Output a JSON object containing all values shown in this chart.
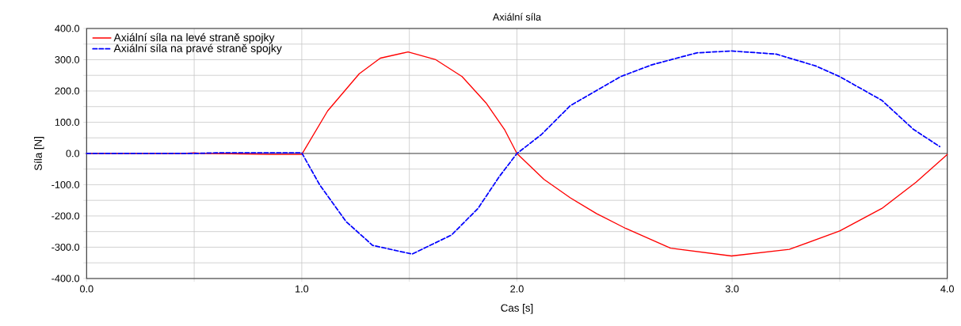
{
  "chart_data": {
    "type": "line",
    "title": "Axiální síla",
    "xlabel": "Cas [s]",
    "ylabel": "Síla [N]",
    "xlim": [
      0,
      4
    ],
    "ylim": [
      -400,
      400
    ],
    "xticks": [
      {
        "value": 0,
        "label": "0.0"
      },
      {
        "value": 0.5,
        "label": null
      },
      {
        "value": 1,
        "label": "1.0"
      },
      {
        "value": 1.5,
        "label": null
      },
      {
        "value": 2,
        "label": "2.0"
      },
      {
        "value": 2.5,
        "label": null
      },
      {
        "value": 3,
        "label": "3.0"
      },
      {
        "value": 3.5,
        "label": null
      },
      {
        "value": 4,
        "label": "4.0"
      }
    ],
    "yticks": [
      {
        "value": -400,
        "label": "-400.0"
      },
      {
        "value": -350,
        "label": null
      },
      {
        "value": -300,
        "label": "-300.0"
      },
      {
        "value": -250,
        "label": null
      },
      {
        "value": -200,
        "label": "-200.0"
      },
      {
        "value": -150,
        "label": null
      },
      {
        "value": -100,
        "label": "-100.0"
      },
      {
        "value": -50,
        "label": null
      },
      {
        "value": 0,
        "label": "0.0"
      },
      {
        "value": 50,
        "label": null
      },
      {
        "value": 100,
        "label": "100.0"
      },
      {
        "value": 150,
        "label": null
      },
      {
        "value": 200,
        "label": "200.0"
      },
      {
        "value": 250,
        "label": null
      },
      {
        "value": 300,
        "label": "300.0"
      },
      {
        "value": 350,
        "label": null
      },
      {
        "value": 400,
        "label": "400.0"
      }
    ],
    "grid": true,
    "legend": "top left",
    "marker": "none",
    "ref_lines": [
      {
        "axis": "y",
        "value": 0,
        "color": "#000000"
      }
    ],
    "series": [
      {
        "name": "Axiální síla na levé straně spojky",
        "color": "#ff0000",
        "line_style": "solid",
        "x": [
          0,
          0.45,
          0.5,
          0.55,
          0.85,
          1.0,
          1.12,
          1.267,
          1.365,
          1.494,
          1.623,
          1.745,
          1.856,
          1.942,
          2.0,
          2.126,
          2.248,
          2.371,
          2.506,
          2.714,
          2.997,
          3.266,
          3.5,
          3.696,
          3.855,
          4.0
        ],
        "values": [
          0,
          0,
          2,
          0,
          -3,
          -3,
          136,
          255,
          305,
          325,
          300,
          246,
          162,
          77,
          0,
          -83,
          -142,
          -193,
          -240,
          -303,
          -328,
          -307,
          -248,
          -176,
          -92,
          -3
        ]
      },
      {
        "name": "Axiální síla na pravé straně spojky",
        "color": "#0000ff",
        "line_style": "dashed",
        "x": [
          0,
          0.5,
          0.6,
          1.0,
          1.083,
          1.206,
          1.329,
          1.513,
          1.696,
          1.819,
          1.917,
          2.0,
          2.113,
          2.248,
          2.482,
          2.628,
          2.836,
          2.997,
          3.205,
          3.389,
          3.5,
          3.696,
          3.843,
          3.965
        ],
        "values": [
          0,
          0,
          2,
          2,
          -100,
          -218,
          -294,
          -322,
          -261,
          -176,
          -75,
          0,
          60,
          153,
          246,
          284,
          322,
          328,
          318,
          280,
          246,
          170,
          77,
          22
        ]
      }
    ]
  }
}
